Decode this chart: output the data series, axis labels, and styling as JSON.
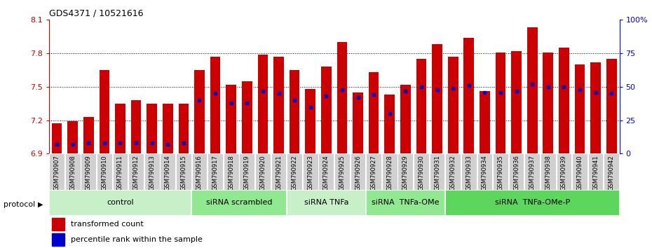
{
  "title": "GDS4371 / 10521616",
  "samples": [
    "GSM790907",
    "GSM790908",
    "GSM790909",
    "GSM790910",
    "GSM790911",
    "GSM790912",
    "GSM790913",
    "GSM790914",
    "GSM790915",
    "GSM790916",
    "GSM790917",
    "GSM790918",
    "GSM790919",
    "GSM790920",
    "GSM790921",
    "GSM790922",
    "GSM790923",
    "GSM790924",
    "GSM790925",
    "GSM790926",
    "GSM790927",
    "GSM790928",
    "GSM790929",
    "GSM790930",
    "GSM790931",
    "GSM790932",
    "GSM790933",
    "GSM790934",
    "GSM790935",
    "GSM790936",
    "GSM790937",
    "GSM790938",
    "GSM790939",
    "GSM790940",
    "GSM790941",
    "GSM790942"
  ],
  "transformed_count": [
    7.17,
    7.19,
    7.23,
    7.65,
    7.35,
    7.38,
    7.35,
    7.35,
    7.35,
    7.65,
    7.77,
    7.52,
    7.55,
    7.79,
    7.77,
    7.65,
    7.48,
    7.68,
    7.9,
    7.45,
    7.63,
    7.43,
    7.52,
    7.75,
    7.88,
    7.77,
    7.94,
    7.46,
    7.81,
    7.82,
    8.03,
    7.81,
    7.85,
    7.7,
    7.72,
    7.75
  ],
  "percentile_rank": [
    7,
    7,
    8,
    8,
    8,
    8,
    8,
    7,
    8,
    40,
    45,
    38,
    38,
    47,
    45,
    40,
    35,
    43,
    48,
    42,
    44,
    30,
    47,
    50,
    48,
    49,
    51,
    46,
    46,
    47,
    52,
    50,
    50,
    48,
    46,
    45
  ],
  "groups": [
    {
      "label": "control",
      "start": 0,
      "end": 9,
      "color": "#c8f0c8"
    },
    {
      "label": "siRNA scrambled",
      "start": 9,
      "end": 15,
      "color": "#90e890"
    },
    {
      "label": "siRNA TNFa",
      "start": 15,
      "end": 20,
      "color": "#c8f0c8"
    },
    {
      "label": "siRNA  TNFa-OMe",
      "start": 20,
      "end": 25,
      "color": "#90e890"
    },
    {
      "label": "siRNA  TNFa-OMe-P",
      "start": 25,
      "end": 36,
      "color": "#5cd65c"
    }
  ],
  "ymin": 6.9,
  "ymax": 8.1,
  "yticks": [
    6.9,
    7.2,
    7.5,
    7.8,
    8.1
  ],
  "bar_color": "#cc0000",
  "dot_color": "#0000cc",
  "bg_color": "#ffffff",
  "right_yticks": [
    0,
    25,
    50,
    75,
    100
  ],
  "right_ylabels": [
    "0",
    "25",
    "50",
    "75",
    "100%"
  ]
}
